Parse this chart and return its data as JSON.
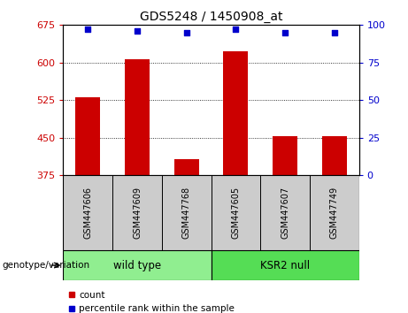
{
  "title": "GDS5248 / 1450908_at",
  "categories": [
    "GSM447606",
    "GSM447609",
    "GSM447768",
    "GSM447605",
    "GSM447607",
    "GSM447749"
  ],
  "bar_values": [
    530,
    607,
    408,
    622,
    453,
    453
  ],
  "percentile_values": [
    97,
    96,
    95,
    97,
    95,
    95
  ],
  "bar_color": "#cc0000",
  "dot_color": "#0000cc",
  "ylim_left": [
    375,
    675
  ],
  "ylim_right": [
    0,
    100
  ],
  "yticks_left": [
    375,
    450,
    525,
    600,
    675
  ],
  "yticks_right": [
    0,
    25,
    50,
    75,
    100
  ],
  "groups": [
    {
      "label": "wild type",
      "start": 0,
      "end": 2,
      "color": "#90ee90"
    },
    {
      "label": "KSR2 null",
      "start": 3,
      "end": 5,
      "color": "#55dd55"
    }
  ],
  "group_label": "genotype/variation",
  "legend_count_label": "count",
  "legend_percentile_label": "percentile rank within the sample",
  "bar_color_left": "#cc0000",
  "ylabel_right_color": "#0000cc",
  "bar_width": 0.5,
  "tick_label_bg": "#cccccc",
  "plot_bg": "#ffffff"
}
